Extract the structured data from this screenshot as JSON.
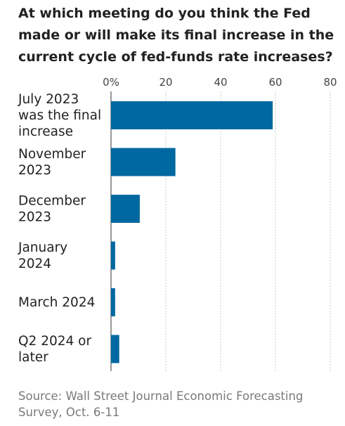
{
  "chart_data": {
    "type": "bar",
    "orientation": "horizontal",
    "title": "At which meeting do you think the Fed made or will make its final increase in the current cycle of fed-funds rate increases?",
    "categories": [
      "July 2023 was the final increase",
      "November 2023",
      "December 2023",
      "January 2024",
      "March 2024",
      "Q2 2024 or later"
    ],
    "category_lines": [
      [
        "July 2023",
        "was the final",
        "increase"
      ],
      [
        "November",
        "2023"
      ],
      [
        "December",
        "2023"
      ],
      [
        "January",
        "2024"
      ],
      [
        "March 2024"
      ],
      [
        "Q2 2024 or",
        "later"
      ]
    ],
    "values": [
      59,
      23.5,
      10.5,
      1.5,
      1.5,
      3
    ],
    "xlim": [
      0,
      80
    ],
    "ticks": [
      0,
      20,
      40,
      60,
      80
    ],
    "tick_labels": [
      "0%",
      "20",
      "40",
      "60",
      "80"
    ],
    "grid": true,
    "bar_color": "#0068a0",
    "source": "Source: Wall Street Journal Economic Forecasting Survey, Oct. 6-11"
  }
}
